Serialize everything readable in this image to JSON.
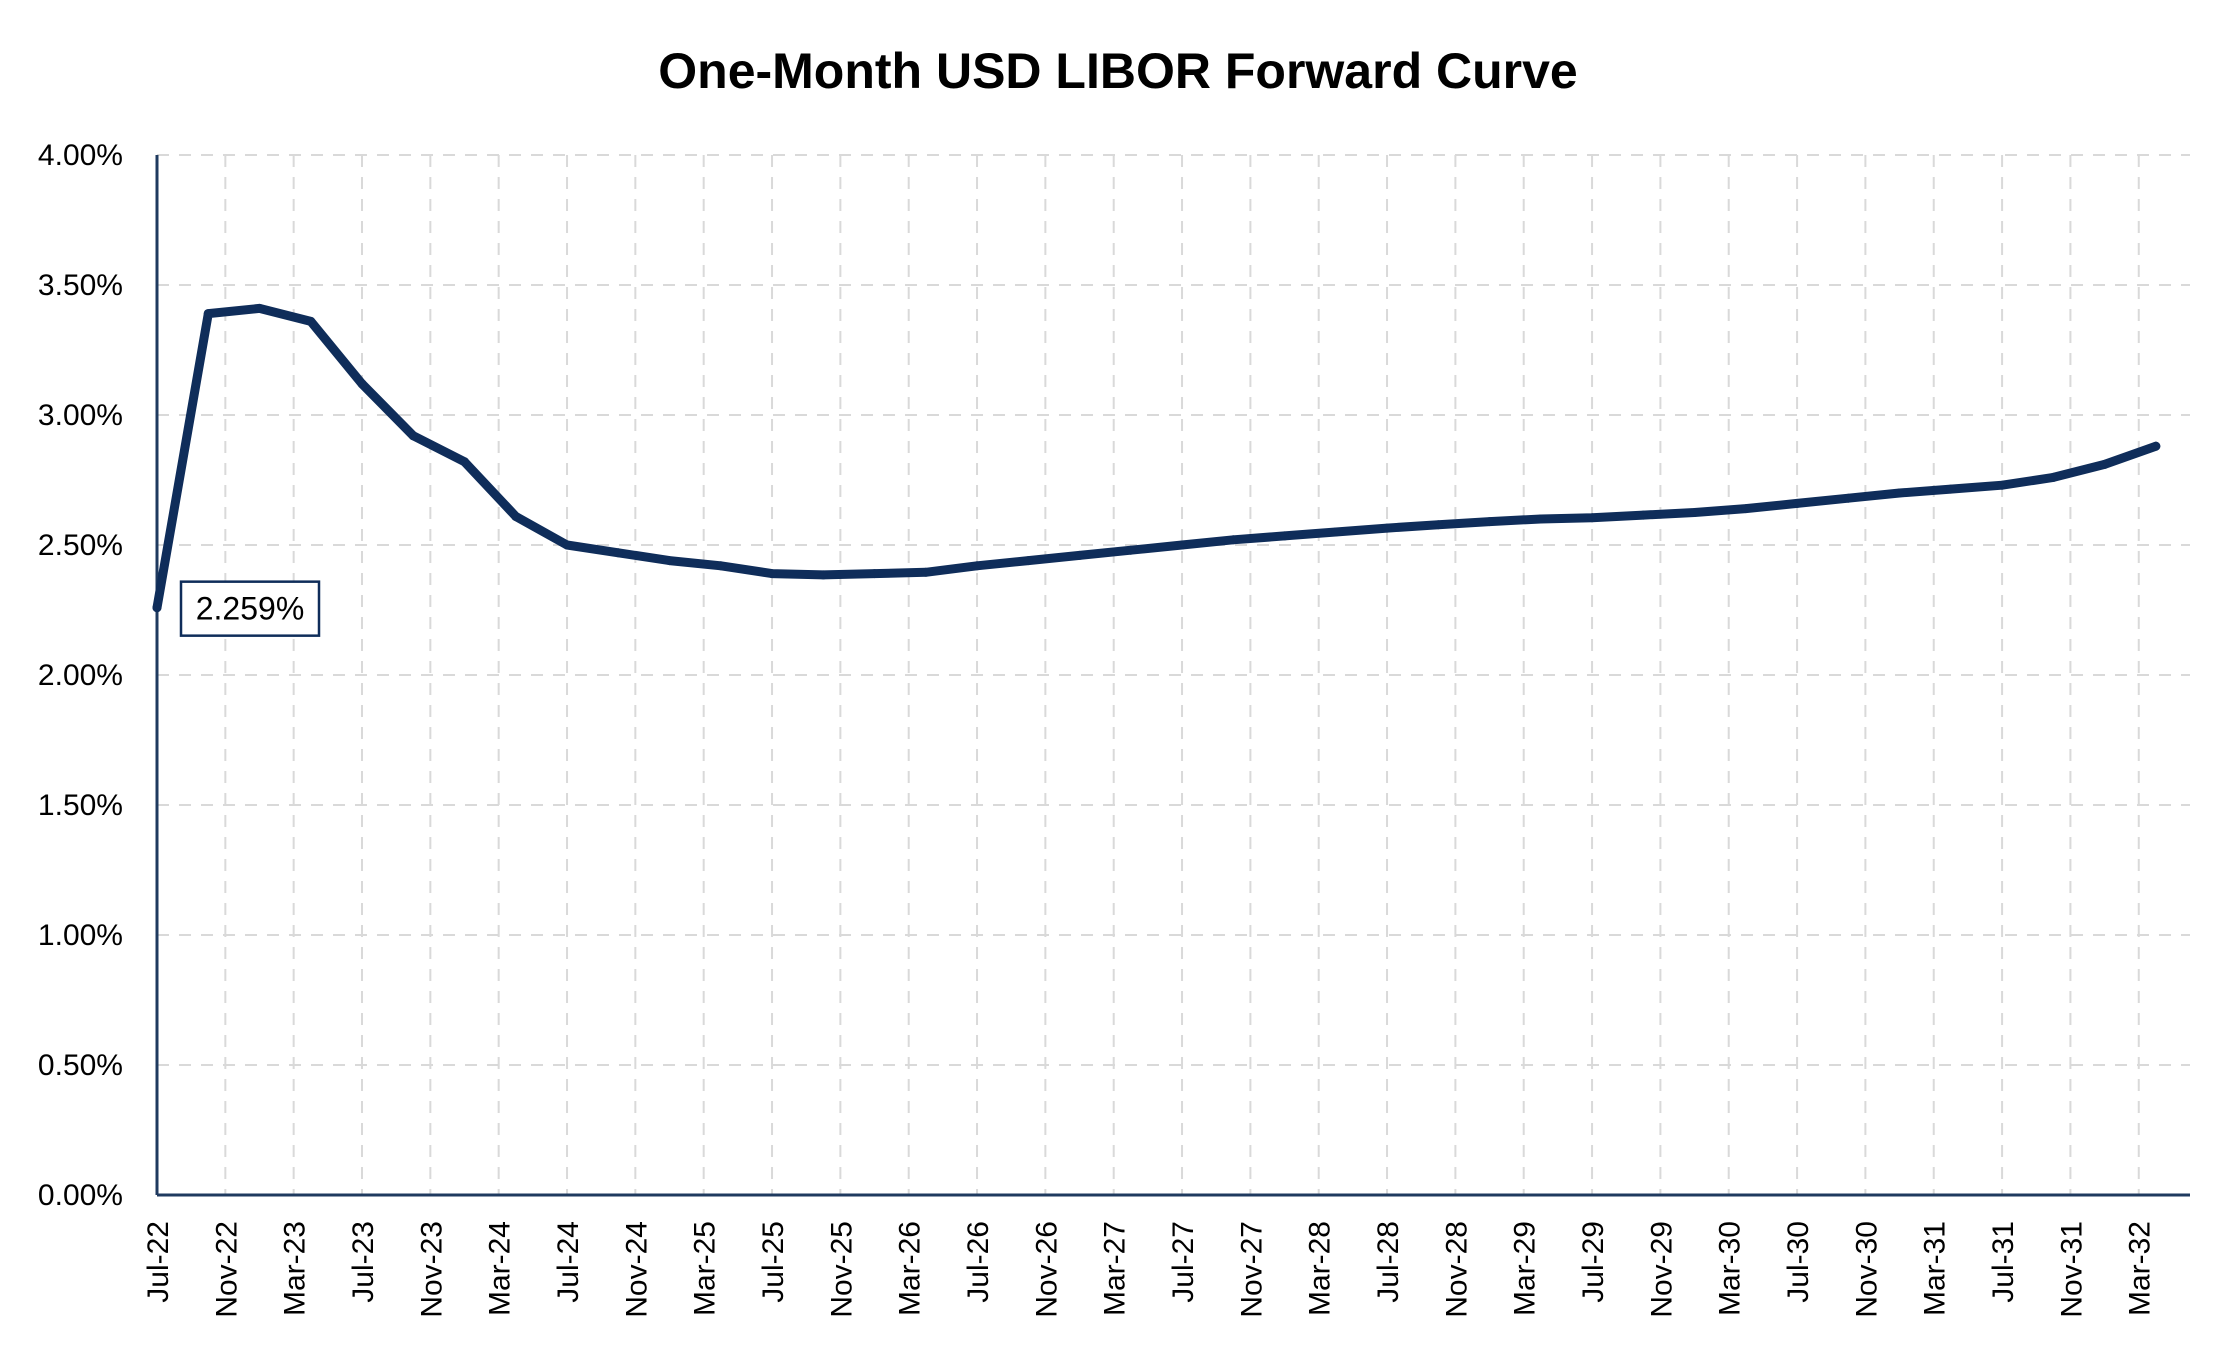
{
  "chart_data": {
    "type": "line",
    "title": "One-Month USD LIBOR Forward Curve",
    "xlabel": "",
    "ylabel": "",
    "y_tick_labels": [
      "0.00%",
      "0.50%",
      "1.00%",
      "1.50%",
      "2.00%",
      "2.50%",
      "3.00%",
      "3.50%",
      "4.00%"
    ],
    "ylim": [
      0,
      4
    ],
    "grid": true,
    "x_tick_labels": [
      "Jul-22",
      "Nov-22",
      "Mar-23",
      "Jul-23",
      "Nov-23",
      "Mar-24",
      "Jul-24",
      "Nov-24",
      "Mar-25",
      "Jul-25",
      "Nov-25",
      "Mar-26",
      "Jul-26",
      "Nov-26",
      "Mar-27",
      "Jul-27",
      "Nov-27",
      "Mar-28",
      "Jul-28",
      "Nov-28",
      "Mar-29",
      "Jul-29",
      "Nov-29",
      "Mar-30",
      "Jul-30",
      "Nov-30",
      "Mar-31",
      "Jul-31",
      "Nov-31",
      "Mar-32"
    ],
    "x_range": [
      "Jul-22",
      "Jun-32"
    ],
    "series": [
      {
        "name": "",
        "color": "#0f2d5a",
        "x": [
          "Jul-22",
          "Oct-22",
          "Jan-23",
          "Apr-23",
          "Jul-23",
          "Oct-23",
          "Jan-24",
          "Apr-24",
          "Jul-24",
          "Oct-24",
          "Jan-25",
          "Apr-25",
          "Jul-25",
          "Oct-25",
          "Jan-26",
          "Apr-26",
          "Jul-26",
          "Oct-26",
          "Jan-27",
          "Apr-27",
          "Jul-27",
          "Oct-27",
          "Jan-28",
          "Apr-28",
          "Jul-28",
          "Oct-28",
          "Jan-29",
          "Apr-29",
          "Jul-29",
          "Oct-29",
          "Jan-30",
          "Apr-30",
          "Jul-30",
          "Oct-30",
          "Jan-31",
          "Apr-31",
          "Jul-31",
          "Oct-31",
          "Jan-32",
          "Apr-32"
        ],
        "values": [
          2.259,
          3.39,
          3.41,
          3.36,
          3.12,
          2.92,
          2.82,
          2.61,
          2.5,
          2.47,
          2.44,
          2.42,
          2.39,
          2.385,
          2.39,
          2.395,
          2.42,
          2.44,
          2.46,
          2.48,
          2.5,
          2.52,
          2.535,
          2.55,
          2.565,
          2.578,
          2.59,
          2.6,
          2.605,
          2.615,
          2.625,
          2.64,
          2.66,
          2.68,
          2.7,
          2.715,
          2.73,
          2.76,
          2.81,
          2.88
        ]
      }
    ],
    "annotations": [
      {
        "text": "2.259%",
        "series_index": 0,
        "point_index": 0
      }
    ]
  }
}
